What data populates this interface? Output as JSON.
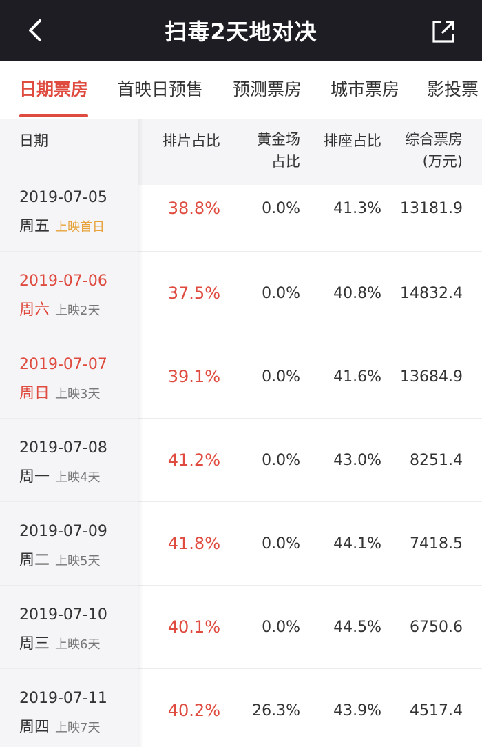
{
  "header": {
    "title": "扫毒2天地对决"
  },
  "tabs": [
    {
      "label": "日期票房",
      "active": true
    },
    {
      "label": "首映日预售",
      "active": false
    },
    {
      "label": "预测票房",
      "active": false
    },
    {
      "label": "城市票房",
      "active": false
    },
    {
      "label": "影投票",
      "active": false
    }
  ],
  "table": {
    "columns": {
      "date": "日期",
      "screening_share": "排片占比",
      "golden_share_l1": "黄金场",
      "golden_share_l2": "占比",
      "seat_share": "排座占比",
      "box_office_l1": "综合票房",
      "box_office_l2": "(万元)"
    },
    "rows": [
      {
        "date": "2019-07-05",
        "weekday": "周五",
        "tag": "上映首日",
        "screening": "38.8%",
        "golden": "0.0%",
        "seat": "41.3%",
        "box": "13181.9"
      },
      {
        "date": "2019-07-06",
        "weekday": "周六",
        "tag": "上映2天",
        "screening": "37.5%",
        "golden": "0.0%",
        "seat": "40.8%",
        "box": "14832.4"
      },
      {
        "date": "2019-07-07",
        "weekday": "周日",
        "tag": "上映3天",
        "screening": "39.1%",
        "golden": "0.0%",
        "seat": "41.6%",
        "box": "13684.9"
      },
      {
        "date": "2019-07-08",
        "weekday": "周一",
        "tag": "上映4天",
        "screening": "41.2%",
        "golden": "0.0%",
        "seat": "43.0%",
        "box": "8251.4"
      },
      {
        "date": "2019-07-09",
        "weekday": "周二",
        "tag": "上映5天",
        "screening": "41.8%",
        "golden": "0.0%",
        "seat": "44.1%",
        "box": "7418.5"
      },
      {
        "date": "2019-07-10",
        "weekday": "周三",
        "tag": "上映6天",
        "screening": "40.1%",
        "golden": "0.0%",
        "seat": "44.5%",
        "box": "6750.6"
      },
      {
        "date": "2019-07-11",
        "weekday": "周四",
        "tag": "上映7天",
        "screening": "40.2%",
        "golden": "26.3%",
        "seat": "43.9%",
        "box": "4517.4"
      }
    ]
  },
  "colors": {
    "accent": "#df4b3f",
    "first_day_tag": "#e7a33a",
    "topbar": "#1e1d23"
  }
}
